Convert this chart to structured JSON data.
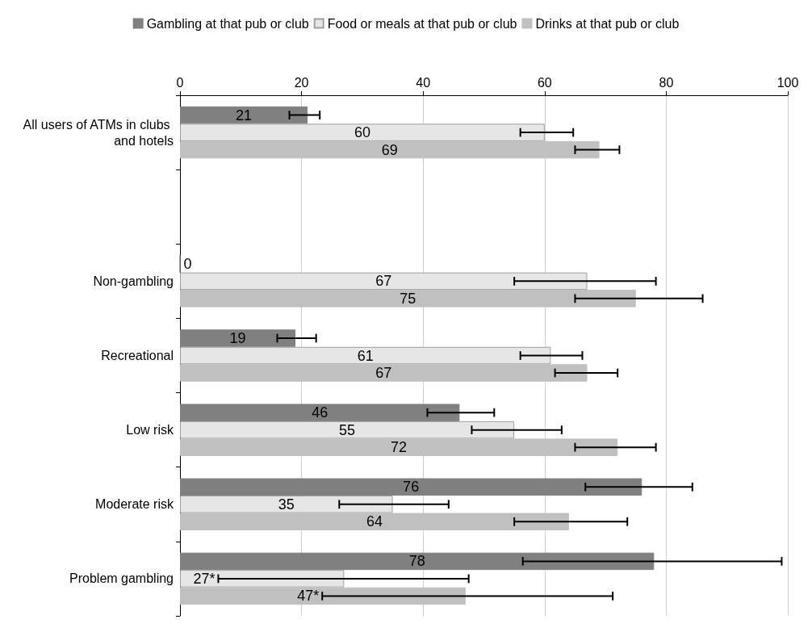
{
  "chart_data": {
    "type": "bar",
    "orientation": "horizontal",
    "categories": [
      "All users of ATMs in clubs and hotels",
      null,
      "Non-gambling",
      "Recreational",
      "Low risk",
      "Moderate risk",
      "Problem gambling"
    ],
    "series": [
      {
        "name": "Gambling at that pub or club",
        "color": "#808080",
        "values": [
          21,
          null,
          0,
          19,
          46,
          76,
          78
        ],
        "value_labels": [
          "21",
          null,
          "0",
          "19",
          "46",
          "76",
          "78"
        ],
        "errors": [
          [
            18,
            23
          ],
          null,
          null,
          [
            16,
            22.4
          ],
          [
            40.7,
            51.7
          ],
          [
            66.7,
            84.3
          ],
          [
            56.4,
            99
          ]
        ]
      },
      {
        "name": "Food or meals at that pub or club",
        "color": "#e6e6e6",
        "values": [
          60,
          null,
          67,
          61,
          55,
          35,
          27
        ],
        "value_labels": [
          "60",
          null,
          "67",
          "61",
          "55",
          "35",
          "27*"
        ],
        "errors": [
          [
            56,
            64.7
          ],
          null,
          [
            55,
            78.3
          ],
          [
            56,
            66.2
          ],
          [
            48,
            62.8
          ],
          [
            26.2,
            44.2
          ],
          [
            6.3,
            47.5
          ]
        ]
      },
      {
        "name": "Drinks at that pub or club",
        "color": "#c0c0c0",
        "values": [
          69,
          null,
          75,
          67,
          72,
          64,
          47
        ],
        "value_labels": [
          "69",
          null,
          "75",
          "67",
          "72",
          "64",
          "47*"
        ],
        "errors": [
          [
            65,
            72.3
          ],
          null,
          [
            65,
            86
          ],
          [
            61.7,
            72
          ],
          [
            65,
            78.3
          ],
          [
            55,
            73.6
          ],
          [
            23.4,
            71.2
          ]
        ]
      }
    ],
    "xlim": [
      0,
      100
    ],
    "xticks": [
      0,
      20,
      40,
      60,
      80,
      100
    ],
    "grid": "x",
    "legend": "top"
  }
}
